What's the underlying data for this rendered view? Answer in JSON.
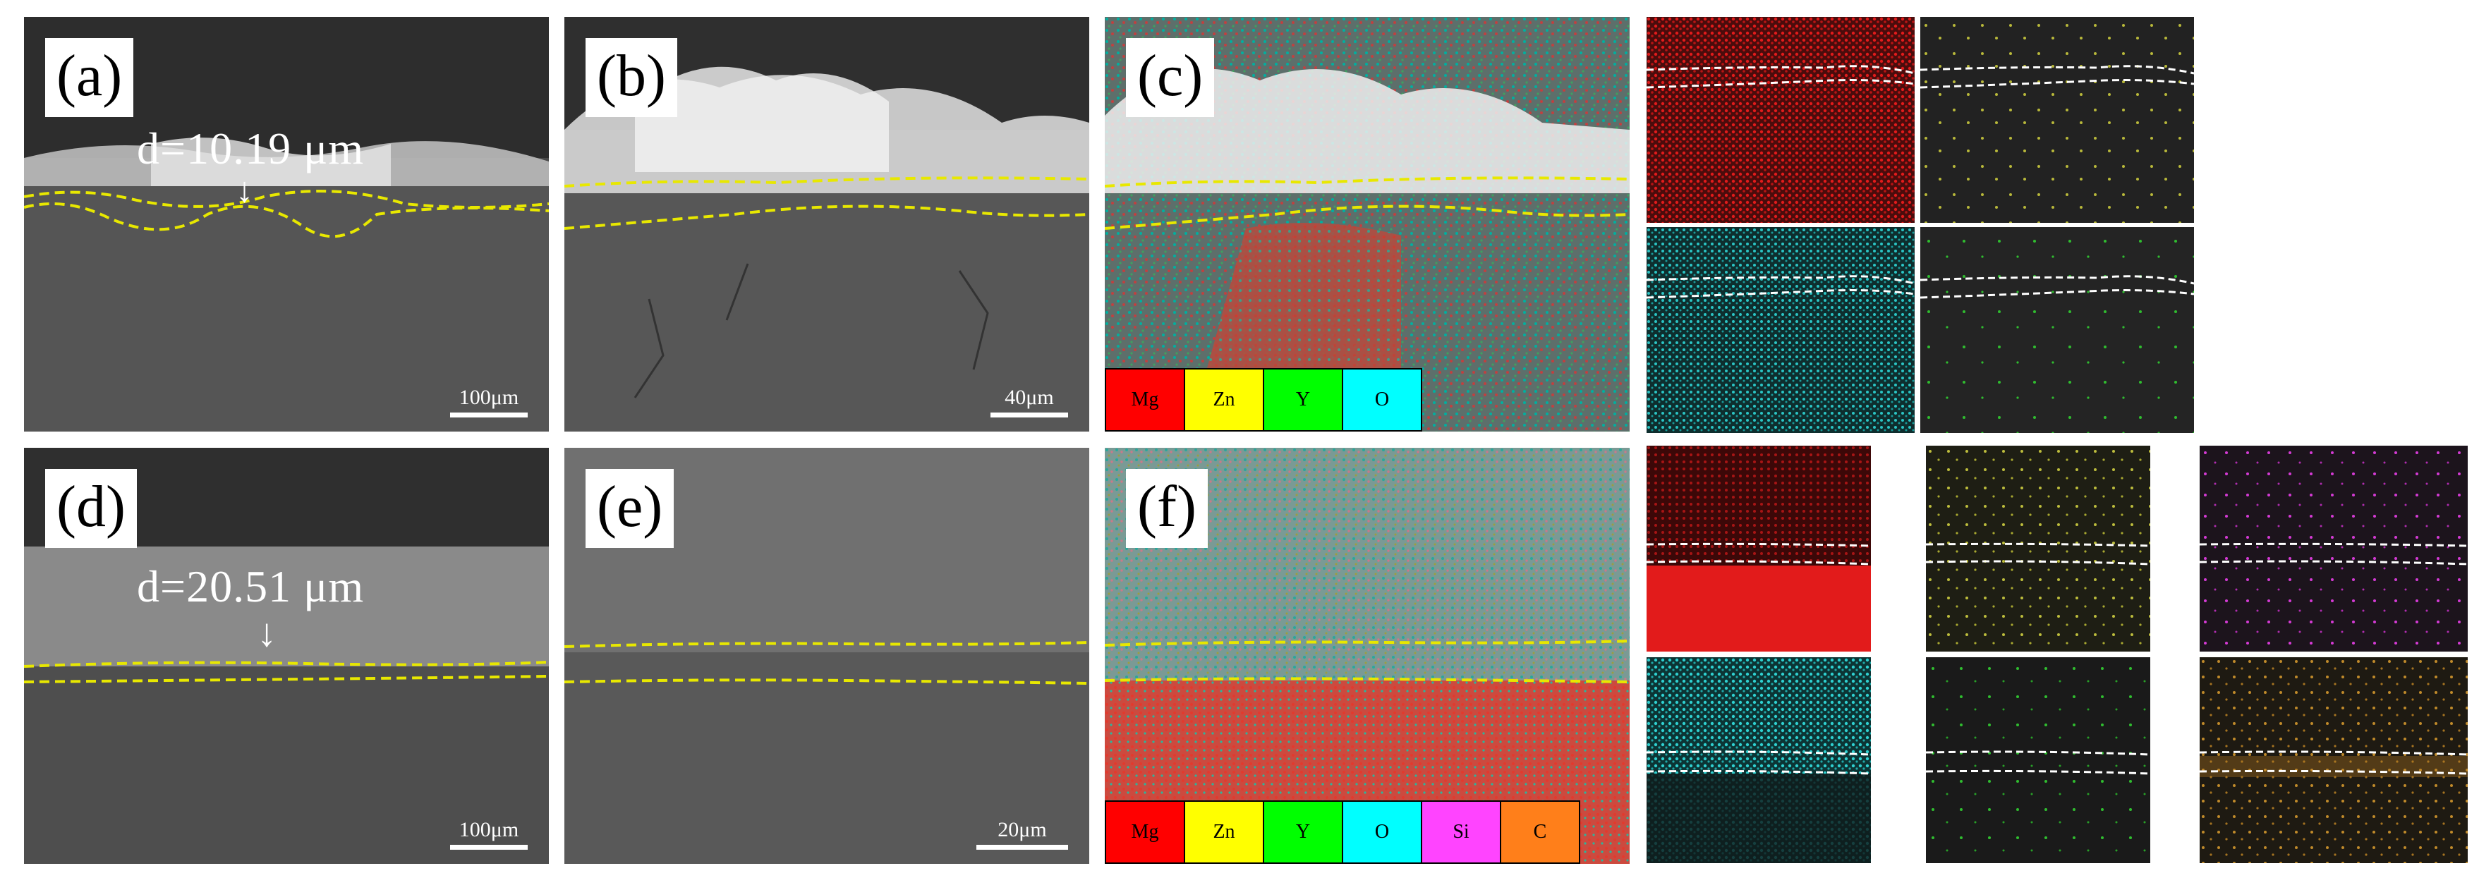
{
  "panels": {
    "a": {
      "label": "(a)",
      "thickness": "d=10.19 μm",
      "scale": "100μm"
    },
    "b": {
      "label": "(b)",
      "scale": "40μm"
    },
    "c": {
      "label": "(c)"
    },
    "d": {
      "label": "(d)",
      "thickness": "d=20.51 μm",
      "scale": "100μm"
    },
    "e": {
      "label": "(e)",
      "scale": "20μm"
    },
    "f": {
      "label": "(f)"
    }
  },
  "legend_top": [
    {
      "name": "Mg",
      "color": "#ff0000"
    },
    {
      "name": "Zn",
      "color": "#ffff00"
    },
    {
      "name": "Y",
      "color": "#00ff00"
    },
    {
      "name": "O",
      "color": "#00ffff"
    }
  ],
  "legend_bottom": [
    {
      "name": "Mg",
      "color": "#ff0000"
    },
    {
      "name": "Zn",
      "color": "#ffff00"
    },
    {
      "name": "Y",
      "color": "#00ff00"
    },
    {
      "name": "O",
      "color": "#00ffff"
    },
    {
      "name": "Si",
      "color": "#ff44ff"
    },
    {
      "name": "C",
      "color": "#ff7f1a"
    }
  ],
  "colors": {
    "interface_line": "#e8e800",
    "map_boundary": "#ffffff"
  }
}
